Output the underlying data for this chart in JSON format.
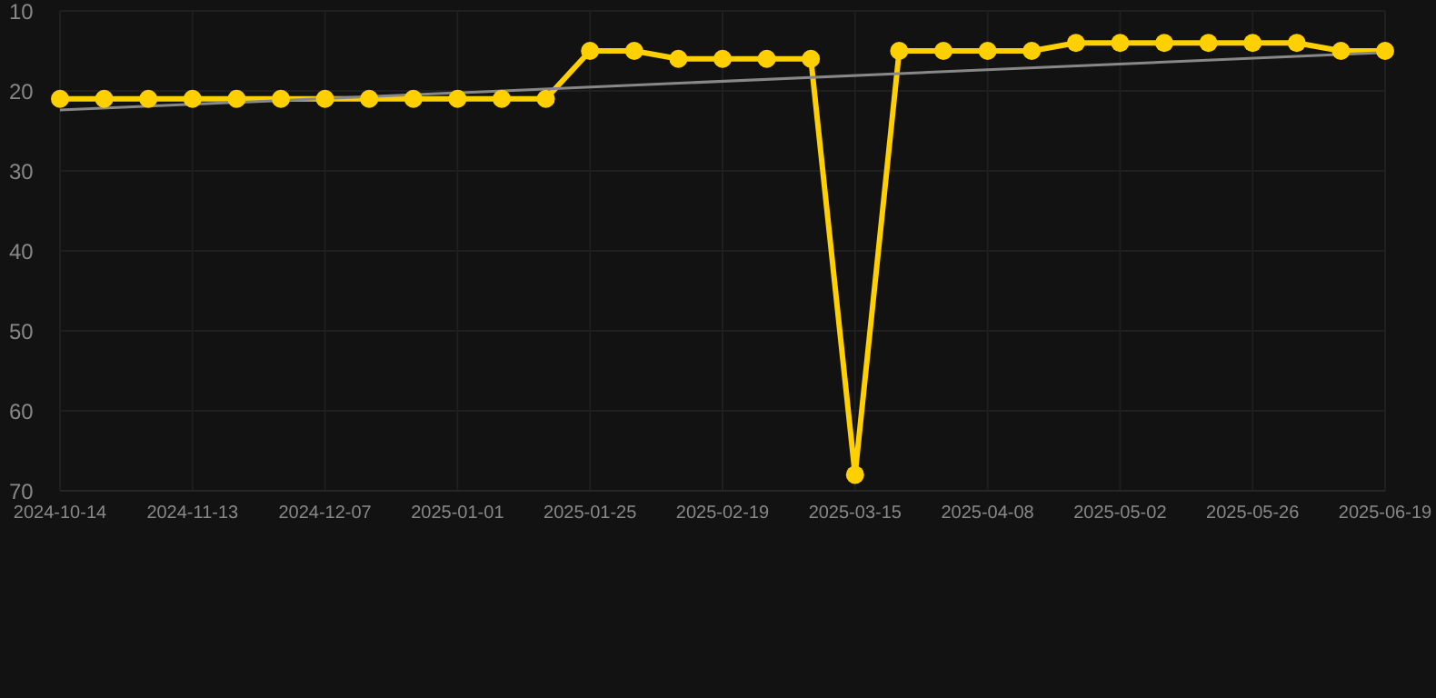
{
  "chart_data": {
    "type": "line",
    "categories": [
      "2024-10-14",
      null,
      null,
      "2024-11-13",
      null,
      null,
      "2024-12-07",
      null,
      null,
      "2025-01-01",
      null,
      null,
      "2025-01-25",
      null,
      null,
      "2025-02-19",
      null,
      null,
      "2025-03-15",
      null,
      null,
      "2025-04-08",
      null,
      null,
      "2025-05-02",
      null,
      null,
      "2025-05-26",
      null,
      null,
      "2025-06-19"
    ],
    "series": [
      {
        "color": "#ffd000",
        "marker": "circle",
        "values": [
          21,
          21,
          21,
          21,
          21,
          21,
          21,
          21,
          21,
          21,
          21,
          21,
          15,
          15,
          16,
          16,
          16,
          16,
          68,
          15,
          15,
          15,
          15,
          14,
          14,
          14,
          14,
          14,
          14,
          15,
          15
        ]
      },
      {
        "color": "#888888",
        "marker": "none",
        "values": [
          22.4,
          null,
          null,
          null,
          null,
          null,
          null,
          null,
          null,
          null,
          null,
          null,
          null,
          null,
          null,
          null,
          null,
          null,
          null,
          null,
          null,
          null,
          null,
          null,
          null,
          null,
          null,
          null,
          null,
          null,
          15.2
        ]
      }
    ],
    "ylim": [
      70,
      10
    ],
    "yticks": [
      10,
      20,
      30,
      40,
      50,
      60,
      70
    ],
    "grid": true,
    "legend": false
  }
}
